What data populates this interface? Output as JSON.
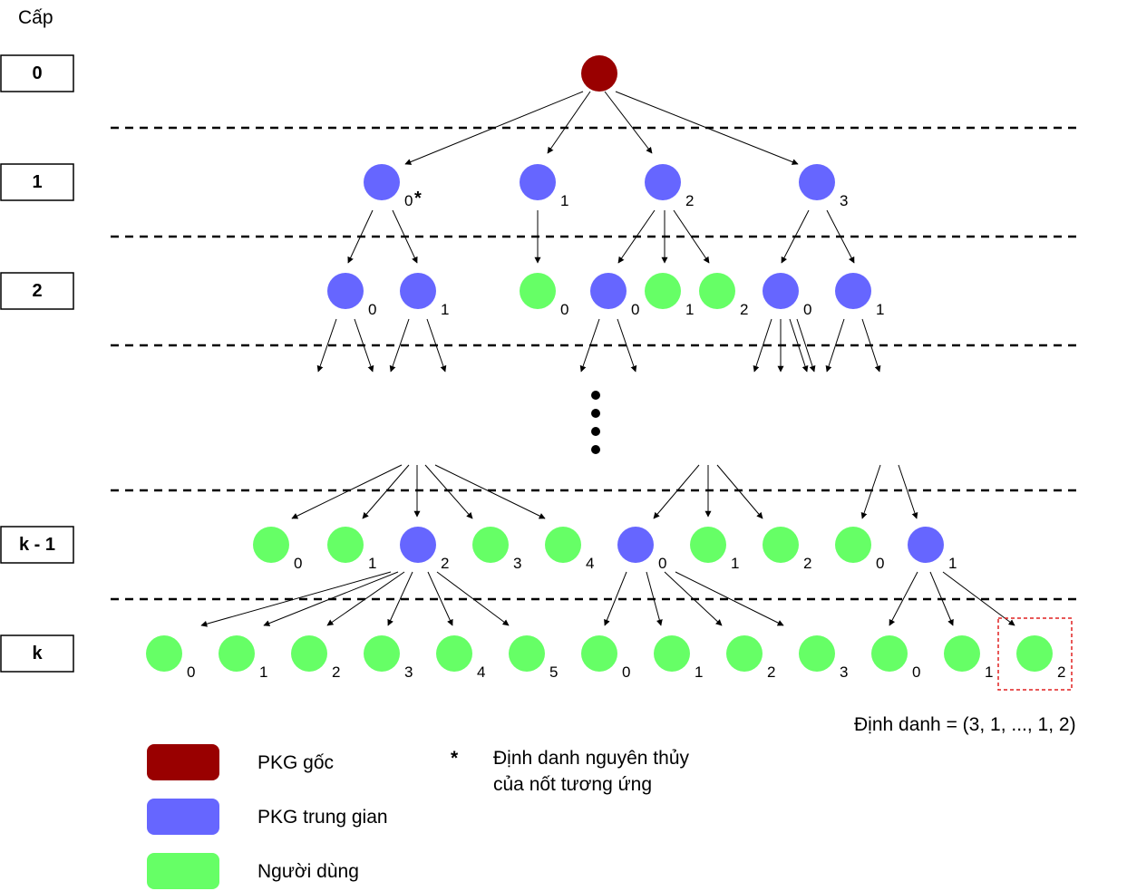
{
  "colors": {
    "root": "#990000",
    "intermediate": "#6666ff",
    "user": "#66ff66",
    "highlight": "#e02020"
  },
  "heading": "Cấp",
  "levels": [
    "0",
    "1",
    "2",
    "k - 1",
    "k"
  ],
  "node_indices": {
    "level1": [
      "0",
      "1",
      "2",
      "3"
    ],
    "level1_star": "*",
    "level2": [
      "0",
      "1",
      "0",
      "0",
      "1",
      "2",
      "0",
      "1"
    ],
    "level_k_minus_1": [
      "0",
      "1",
      "2",
      "3",
      "4",
      "0",
      "1",
      "2",
      "0",
      "1"
    ],
    "level_k": [
      "0",
      "1",
      "2",
      "3",
      "4",
      "5",
      "0",
      "1",
      "2",
      "3",
      "0",
      "1",
      "2"
    ]
  },
  "identifier": "Định danh = (3, 1, ..., 1, 2)",
  "legend": {
    "root": "PKG gốc",
    "intermediate": "PKG trung gian",
    "user": "Người dùng"
  },
  "footnote": {
    "mark": "*",
    "line1": "Định danh nguyên thủy",
    "line2": "của nốt tương ứng"
  }
}
